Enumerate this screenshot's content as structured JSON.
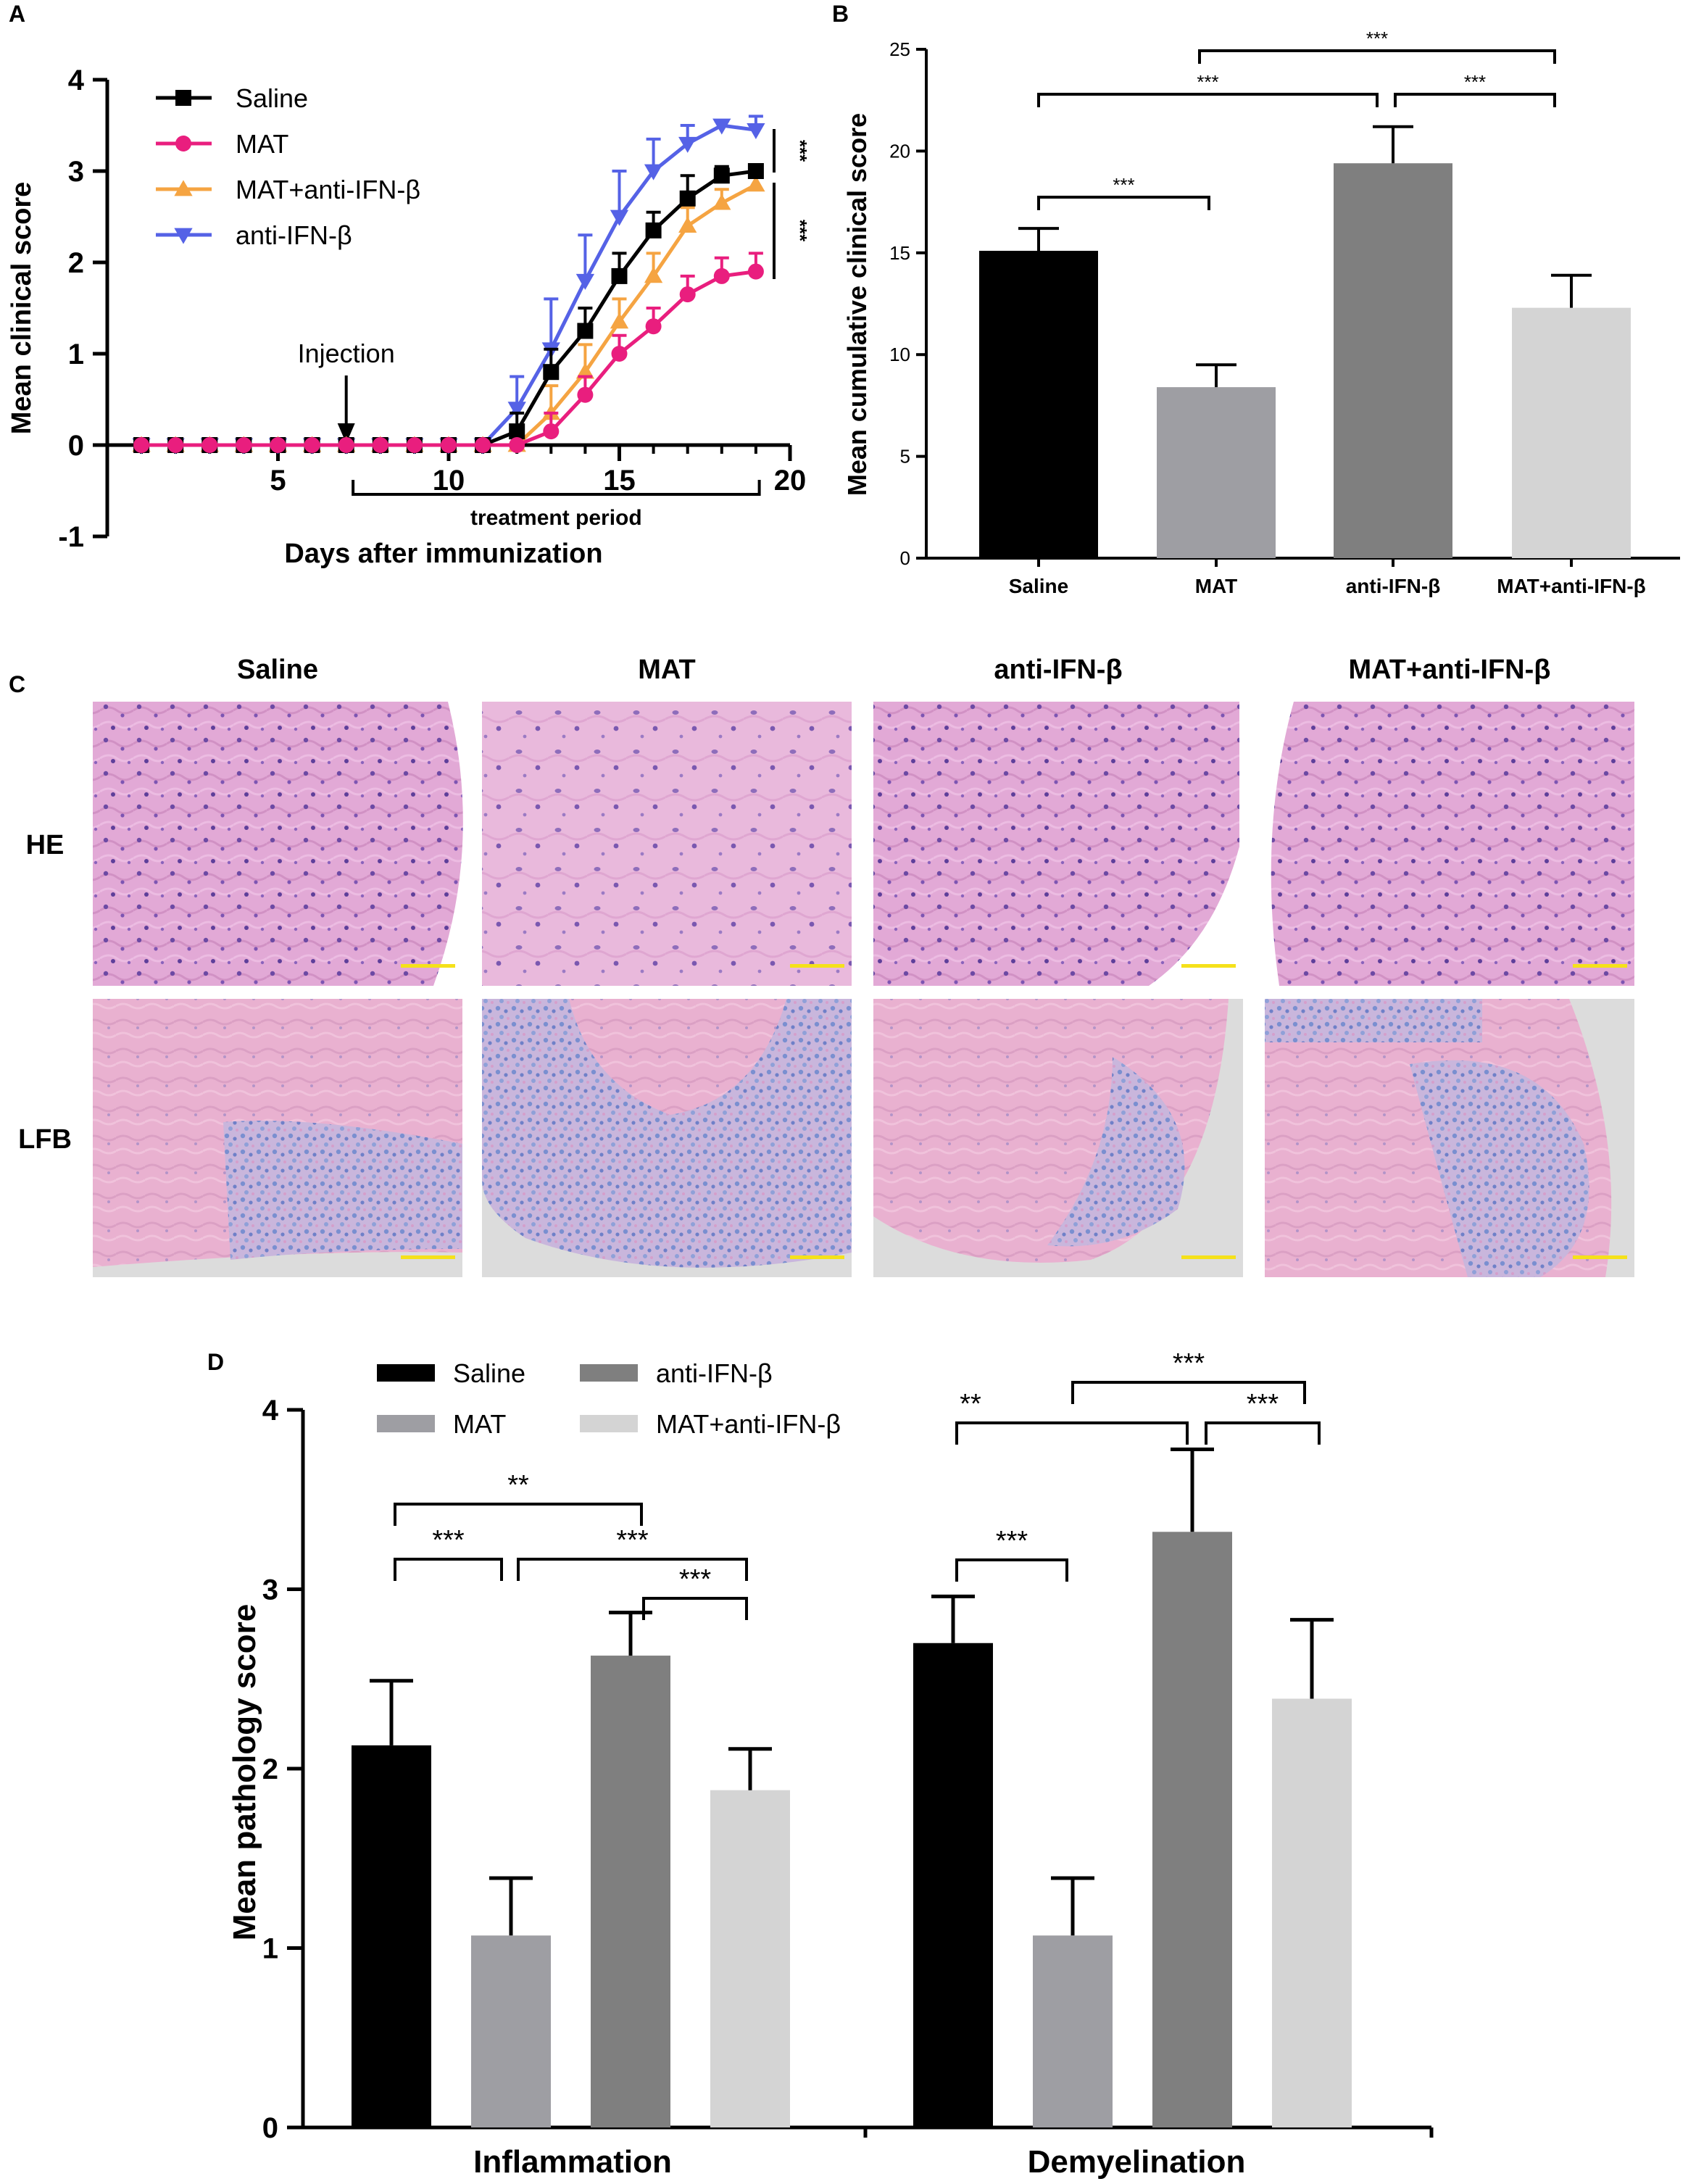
{
  "colors": {
    "saline": "#000000",
    "mat": "#e91e7e",
    "mat_anti": "#f5a442",
    "anti": "#5562e6",
    "bar_saline": "#000000",
    "bar_mat": "#9e9ea3",
    "bar_anti": "#7f7f7f",
    "bar_mat_anti": "#d4d4d4",
    "scalebar": "#f5e11a"
  },
  "panels": {
    "a": "A",
    "b": "B",
    "c": "C",
    "d": "D"
  },
  "chart_data": [
    {
      "panel": "A",
      "type": "line",
      "xlabel": "Days after immunization",
      "ylabel": "Mean clinical score",
      "xlim": [
        0,
        20
      ],
      "ylim": [
        -1,
        4
      ],
      "xticks": [
        "5",
        "10",
        "15",
        "20"
      ],
      "yticks": [
        "-1",
        "0",
        "1",
        "2",
        "3",
        "4"
      ],
      "annotation_injection": "Injection",
      "annotation_injection_day": 7,
      "annotation_period": "treatment period",
      "annotation_period_range": [
        7.2,
        19.1
      ],
      "sig_labels": [
        "***",
        "***"
      ],
      "legend": [
        "Saline",
        "MAT",
        "MAT+anti-IFN-β",
        "anti-IFN-β"
      ],
      "x": [
        1,
        2,
        3,
        4,
        5,
        6,
        7,
        8,
        9,
        10,
        11,
        12,
        13,
        14,
        15,
        16,
        17,
        18,
        19
      ],
      "series": [
        {
          "name": "Saline",
          "marker": "square",
          "color_key": "saline",
          "values": [
            0,
            0,
            0,
            0,
            0,
            0,
            0,
            0,
            0,
            0,
            0,
            0.15,
            0.8,
            1.25,
            1.85,
            2.35,
            2.7,
            2.95,
            3.0
          ],
          "err": [
            0,
            0,
            0,
            0,
            0,
            0,
            0,
            0,
            0,
            0,
            0,
            0.2,
            0.25,
            0.25,
            0.25,
            0.2,
            0.25,
            0.1,
            0.05
          ]
        },
        {
          "name": "MAT",
          "marker": "circle",
          "color_key": "mat",
          "values": [
            0,
            0,
            0,
            0,
            0,
            0,
            0,
            0,
            0,
            0,
            0,
            0,
            0.15,
            0.55,
            1.0,
            1.3,
            1.65,
            1.85,
            1.9
          ],
          "err": [
            0,
            0,
            0,
            0,
            0,
            0,
            0,
            0,
            0,
            0,
            0,
            0,
            0.2,
            0.2,
            0.2,
            0.2,
            0.2,
            0.2,
            0.2
          ]
        },
        {
          "name": "MAT+anti-IFN-β",
          "marker": "triangle-up",
          "color_key": "mat_anti",
          "values": [
            0,
            0,
            0,
            0,
            0,
            0,
            0,
            0,
            0,
            0,
            0,
            0,
            0.35,
            0.8,
            1.35,
            1.85,
            2.4,
            2.65,
            2.85
          ],
          "err": [
            0,
            0,
            0,
            0,
            0,
            0,
            0,
            0,
            0,
            0,
            0,
            0,
            0.3,
            0.3,
            0.25,
            0.25,
            0.2,
            0.15,
            0.1
          ]
        },
        {
          "name": "anti-IFN-β",
          "marker": "triangle-down",
          "color_key": "anti",
          "values": [
            0,
            0,
            0,
            0,
            0,
            0,
            0,
            0,
            0,
            0,
            0,
            0.4,
            1.05,
            1.8,
            2.5,
            3.0,
            3.3,
            3.5,
            3.45
          ],
          "err": [
            0,
            0,
            0,
            0,
            0,
            0,
            0,
            0,
            0,
            0,
            0,
            0.35,
            0.55,
            0.5,
            0.5,
            0.35,
            0.2,
            0.05,
            0.15
          ]
        }
      ]
    },
    {
      "panel": "B",
      "type": "bar",
      "ylabel": "Mean cumulative clinical score",
      "ylim": [
        0,
        25
      ],
      "yticks": [
        "0",
        "5",
        "10",
        "15",
        "20",
        "25"
      ],
      "categories": [
        "Saline",
        "MAT",
        "anti-IFN-β",
        "MAT+anti-IFN-β"
      ],
      "values": [
        15.1,
        8.4,
        19.4,
        12.3
      ],
      "err": [
        1.1,
        1.1,
        1.8,
        1.6
      ],
      "color_keys": [
        "bar_saline",
        "bar_mat",
        "bar_anti",
        "bar_mat_anti"
      ],
      "brackets": [
        {
          "from": 0,
          "to": 1,
          "label": "***"
        },
        {
          "from": 0,
          "to": 2,
          "label": "***"
        },
        {
          "from": 2,
          "to": 3,
          "label": "***"
        },
        {
          "from": 1,
          "to": 3,
          "label": "***"
        }
      ]
    },
    {
      "panel": "D",
      "type": "bar",
      "ylabel": "Mean pathology score",
      "ylim": [
        0,
        4
      ],
      "yticks": [
        "0",
        "1",
        "2",
        "3",
        "4"
      ],
      "categories": [
        "Inflammation",
        "Demyelination"
      ],
      "legend": [
        "Saline",
        "anti-IFN-β",
        "MAT",
        "MAT+anti-IFN-β"
      ],
      "legend_color_keys": [
        "bar_saline",
        "bar_anti",
        "bar_mat",
        "bar_mat_anti"
      ],
      "series": [
        {
          "name": "Saline",
          "color_key": "bar_saline",
          "values": [
            2.13,
            2.7
          ],
          "err": [
            0.36,
            0.26
          ]
        },
        {
          "name": "MAT",
          "color_key": "bar_mat",
          "values": [
            1.07,
            1.07
          ],
          "err": [
            0.32,
            0.32
          ]
        },
        {
          "name": "anti-IFN-β",
          "color_key": "bar_anti",
          "values": [
            2.63,
            3.32
          ],
          "err": [
            0.24,
            0.46
          ]
        },
        {
          "name": "MAT+anti-IFN-β",
          "color_key": "bar_mat_anti",
          "values": [
            1.88,
            2.39
          ],
          "err": [
            0.23,
            0.44
          ]
        }
      ],
      "brackets": [
        {
          "group": 0,
          "from": 0,
          "to": 2,
          "label": "**"
        },
        {
          "group": 0,
          "from": 0,
          "to": 1,
          "label": "***"
        },
        {
          "group": 0,
          "from": 1,
          "to": 3,
          "label": "***"
        },
        {
          "group": 0,
          "from": 2,
          "to": 3,
          "label": "***"
        },
        {
          "group": 1,
          "from": 1,
          "to": 3,
          "label": "***"
        },
        {
          "group": 1,
          "from": 0,
          "to": 2,
          "label": "**"
        },
        {
          "group": 1,
          "from": 2,
          "to": 3,
          "label": "***"
        },
        {
          "group": 1,
          "from": 0,
          "to": 1,
          "label": "***"
        }
      ]
    }
  ],
  "histology": {
    "columns": [
      "Saline",
      "MAT",
      "anti-IFN-β",
      "MAT+anti-IFN-β"
    ],
    "rows": [
      "HE",
      "LFB"
    ]
  }
}
